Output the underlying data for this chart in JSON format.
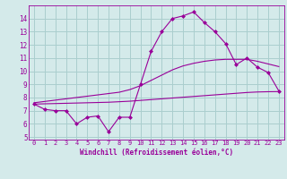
{
  "hours": [
    0,
    1,
    2,
    3,
    4,
    5,
    6,
    7,
    8,
    9,
    10,
    11,
    12,
    13,
    14,
    15,
    16,
    17,
    18,
    19,
    20,
    21,
    22,
    23
  ],
  "line_main": [
    7.5,
    7.1,
    7.0,
    7.0,
    6.0,
    6.5,
    6.6,
    5.4,
    6.5,
    6.5,
    9.0,
    11.5,
    13.0,
    14.0,
    14.2,
    14.5,
    13.7,
    13.0,
    12.1,
    10.5,
    11.0,
    10.3,
    9.9,
    8.5
  ],
  "line_upper": [
    7.6,
    7.7,
    7.8,
    7.9,
    8.0,
    8.1,
    8.2,
    8.3,
    8.4,
    8.6,
    8.9,
    9.3,
    9.7,
    10.1,
    10.4,
    10.6,
    10.75,
    10.85,
    10.9,
    10.9,
    10.9,
    10.75,
    10.55,
    10.35
  ],
  "line_lower": [
    7.5,
    7.52,
    7.54,
    7.56,
    7.58,
    7.6,
    7.62,
    7.64,
    7.68,
    7.72,
    7.78,
    7.84,
    7.9,
    7.96,
    8.02,
    8.08,
    8.14,
    8.2,
    8.26,
    8.32,
    8.38,
    8.42,
    8.44,
    8.45
  ],
  "color": "#990099",
  "bg_color": "#d4eaea",
  "grid_color": "#aacece",
  "xlabel": "Windchill (Refroidissement éolien,°C)",
  "xlim": [
    -0.5,
    23.5
  ],
  "ylim": [
    4.8,
    15.0
  ],
  "yticks": [
    5,
    6,
    7,
    8,
    9,
    10,
    11,
    12,
    13,
    14
  ],
  "xticks": [
    0,
    1,
    2,
    3,
    4,
    5,
    6,
    7,
    8,
    9,
    10,
    11,
    12,
    13,
    14,
    15,
    16,
    17,
    18,
    19,
    20,
    21,
    22,
    23
  ],
  "figsize": [
    3.2,
    2.0
  ],
  "dpi": 100
}
